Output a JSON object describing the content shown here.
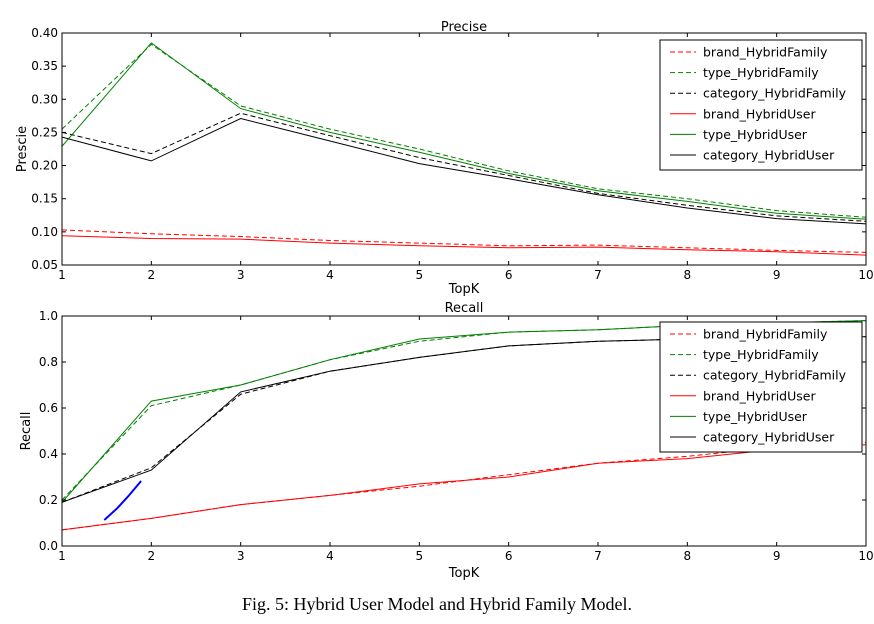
{
  "caption": "Fig. 5: Hybrid User Model and Hybrid Family Model.",
  "chart_data": [
    {
      "type": "line",
      "title": "Precise",
      "xlabel": "TopK",
      "ylabel": "Prescie",
      "xlim": [
        1,
        10
      ],
      "ylim": [
        0.05,
        0.4
      ],
      "x": [
        1,
        2,
        3,
        4,
        5,
        6,
        7,
        8,
        9,
        10
      ],
      "xticks": [
        "1",
        "2",
        "3",
        "4",
        "5",
        "6",
        "7",
        "8",
        "9",
        "10"
      ],
      "yticks": [
        "0.05",
        "0.10",
        "0.15",
        "0.20",
        "0.25",
        "0.30",
        "0.35",
        "0.40"
      ],
      "legend_position": "top-right",
      "series": [
        {
          "name": "brand_HybridFamily",
          "color": "#ff0000",
          "dashed": true,
          "values": [
            0.103,
            0.097,
            0.093,
            0.087,
            0.083,
            0.079,
            0.08,
            0.076,
            0.072,
            0.069
          ]
        },
        {
          "name": "type_HybridFamily",
          "color": "#008000",
          "dashed": true,
          "values": [
            0.255,
            0.383,
            0.29,
            0.255,
            0.225,
            0.192,
            0.165,
            0.15,
            0.132,
            0.122
          ]
        },
        {
          "name": "category_HybridFamily",
          "color": "#000000",
          "dashed": true,
          "values": [
            0.25,
            0.218,
            0.279,
            0.245,
            0.212,
            0.185,
            0.158,
            0.14,
            0.124,
            0.116
          ]
        },
        {
          "name": "brand_HybridUser",
          "color": "#ff0000",
          "dashed": false,
          "values": [
            0.094,
            0.09,
            0.089,
            0.083,
            0.079,
            0.076,
            0.077,
            0.073,
            0.07,
            0.065
          ]
        },
        {
          "name": "type_HybridUser",
          "color": "#008000",
          "dashed": false,
          "values": [
            0.229,
            0.385,
            0.286,
            0.25,
            0.22,
            0.188,
            0.162,
            0.146,
            0.128,
            0.119
          ]
        },
        {
          "name": "category_HybridUser",
          "color": "#000000",
          "dashed": false,
          "values": [
            0.243,
            0.207,
            0.271,
            0.237,
            0.203,
            0.18,
            0.156,
            0.136,
            0.12,
            0.112
          ]
        }
      ]
    },
    {
      "type": "line",
      "title": "Recall",
      "xlabel": "TopK",
      "ylabel": "Recall",
      "xlim": [
        1,
        10
      ],
      "ylim": [
        0.0,
        1.0
      ],
      "x": [
        1,
        2,
        3,
        4,
        5,
        6,
        7,
        8,
        9,
        10
      ],
      "xticks": [
        "1",
        "2",
        "3",
        "4",
        "5",
        "6",
        "7",
        "8",
        "9",
        "10"
      ],
      "yticks": [
        "0.0",
        "0.2",
        "0.4",
        "0.6",
        "0.8",
        "1.0"
      ],
      "legend_position": "right",
      "series": [
        {
          "name": "brand_HybridFamily",
          "color": "#ff0000",
          "dashed": true,
          "values": [
            0.07,
            0.12,
            0.18,
            0.22,
            0.26,
            0.31,
            0.36,
            0.39,
            0.43,
            0.45
          ]
        },
        {
          "name": "type_HybridFamily",
          "color": "#008000",
          "dashed": true,
          "values": [
            0.2,
            0.61,
            0.7,
            0.81,
            0.89,
            0.93,
            0.94,
            0.96,
            0.97,
            0.98
          ]
        },
        {
          "name": "category_HybridFamily",
          "color": "#000000",
          "dashed": true,
          "values": [
            0.19,
            0.34,
            0.66,
            0.76,
            0.82,
            0.87,
            0.89,
            0.9,
            0.91,
            0.91
          ]
        },
        {
          "name": "brand_HybridUser",
          "color": "#ff0000",
          "dashed": false,
          "values": [
            0.07,
            0.12,
            0.18,
            0.22,
            0.27,
            0.3,
            0.36,
            0.38,
            0.42,
            0.44
          ]
        },
        {
          "name": "type_HybridUser",
          "color": "#008000",
          "dashed": false,
          "values": [
            0.19,
            0.63,
            0.7,
            0.81,
            0.9,
            0.93,
            0.94,
            0.96,
            0.97,
            0.98
          ]
        },
        {
          "name": "category_HybridUser",
          "color": "#000000",
          "dashed": false,
          "values": [
            0.19,
            0.33,
            0.67,
            0.76,
            0.82,
            0.87,
            0.89,
            0.9,
            0.91,
            0.91
          ]
        }
      ],
      "annotation_stroke": {
        "color": "#0000ff",
        "points": [
          [
            1.48,
            0.115
          ],
          [
            1.62,
            0.165
          ],
          [
            1.75,
            0.22
          ],
          [
            1.88,
            0.28
          ]
        ]
      }
    }
  ]
}
